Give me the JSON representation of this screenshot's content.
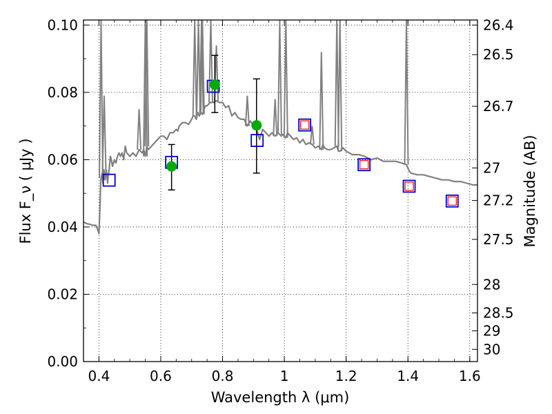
{
  "chart_data": {
    "type": "scatter",
    "xlabel": "Wavelength  λ (μm)",
    "ylabel": "Flux  F_ν  ( μJy )",
    "y2label": "Magnitude (AB)",
    "xlim": [
      0.35,
      1.625
    ],
    "ylim": [
      0.0,
      0.1015
    ],
    "grid": true,
    "x_ticks": [
      0.4,
      0.6,
      0.8,
      1.0,
      1.2,
      1.4,
      1.6
    ],
    "x_tick_labels": [
      "0.4",
      "0.6",
      "0.8",
      "1",
      "1.2",
      "1.4",
      "1.6"
    ],
    "y_ticks": [
      0.0,
      0.02,
      0.04,
      0.06,
      0.08,
      0.1
    ],
    "y_tick_labels": [
      "0.00",
      "0.02",
      "0.04",
      "0.06",
      "0.08",
      "0.10"
    ],
    "mag_ticks": [
      26.4,
      26.5,
      26.7,
      27,
      27.2,
      27.5,
      28,
      28.5,
      29,
      30
    ],
    "mag_tick_labels": [
      "26.4",
      "26.5",
      "26.7",
      "27",
      "27.2",
      "27.5",
      "28",
      "28.5",
      "29",
      "30"
    ],
    "series": [
      {
        "type": "line",
        "color": "#808080",
        "x": [
          0.35,
          0.36,
          0.37,
          0.38,
          0.39,
          0.395,
          0.4,
          0.403,
          0.406,
          0.41,
          0.413,
          0.416,
          0.42,
          0.424,
          0.428,
          0.43,
          0.433,
          0.437,
          0.44,
          0.444,
          0.45,
          0.455,
          0.46,
          0.465,
          0.47,
          0.475,
          0.48,
          0.485,
          0.49,
          0.5,
          0.51,
          0.52,
          0.53,
          0.54,
          0.545,
          0.55,
          0.555,
          0.56,
          0.57,
          0.58,
          0.59,
          0.6,
          0.61,
          0.62,
          0.63,
          0.64,
          0.65,
          0.655,
          0.66,
          0.67,
          0.68,
          0.69,
          0.7,
          0.705,
          0.71,
          0.715,
          0.72,
          0.725,
          0.73,
          0.735,
          0.74,
          0.745,
          0.75,
          0.76,
          0.77,
          0.78,
          0.79,
          0.8,
          0.81,
          0.82,
          0.83,
          0.84,
          0.85,
          0.86,
          0.87,
          0.88,
          0.89,
          0.9,
          0.91,
          0.92,
          0.93,
          0.94,
          0.95,
          0.96,
          0.97,
          0.98,
          0.99,
          0.995,
          1.0,
          1.005,
          1.01,
          1.02,
          1.03,
          1.04,
          1.05,
          1.06,
          1.07,
          1.08,
          1.09,
          1.1,
          1.11,
          1.12,
          1.125,
          1.13,
          1.14,
          1.15,
          1.16,
          1.17,
          1.175,
          1.18,
          1.185,
          1.19,
          1.2,
          1.22,
          1.24,
          1.26,
          1.28,
          1.3,
          1.32,
          1.34,
          1.36,
          1.38,
          1.395,
          1.4,
          1.405,
          1.41,
          1.43,
          1.45,
          1.47,
          1.49,
          1.51,
          1.53,
          1.55,
          1.57,
          1.59,
          1.61,
          1.625
        ],
        "y": [
          0.0415,
          0.041,
          0.0408,
          0.0405,
          0.0405,
          0.0395,
          0.038,
          0.045,
          0.054,
          0.056,
          0.053,
          0.057,
          0.054,
          0.057,
          0.053,
          0.055,
          0.057,
          0.061,
          0.06,
          0.058,
          0.06,
          0.059,
          0.061,
          0.062,
          0.061,
          0.062,
          0.06,
          0.064,
          0.062,
          0.061,
          0.062,
          0.061,
          0.063,
          0.062,
          0.063,
          0.061,
          0.064,
          0.063,
          0.064,
          0.065,
          0.066,
          0.067,
          0.067,
          0.066,
          0.068,
          0.068,
          0.069,
          0.0685,
          0.07,
          0.071,
          0.071,
          0.0705,
          0.072,
          0.073,
          0.073,
          0.072,
          0.074,
          0.073,
          0.074,
          0.0735,
          0.075,
          0.076,
          0.076,
          0.077,
          0.077,
          0.0775,
          0.077,
          0.077,
          0.0755,
          0.076,
          0.073,
          0.074,
          0.0725,
          0.072,
          0.072,
          0.07,
          0.0715,
          0.07,
          0.069,
          0.066,
          0.069,
          0.068,
          0.067,
          0.068,
          0.067,
          0.068,
          0.067,
          0.0675,
          0.067,
          0.0665,
          0.068,
          0.067,
          0.066,
          0.0665,
          0.065,
          0.066,
          0.0645,
          0.065,
          0.0645,
          0.0635,
          0.064,
          0.063,
          0.0645,
          0.0635,
          0.063,
          0.063,
          0.0635,
          0.064,
          0.0625,
          0.0625,
          0.063,
          0.0635,
          0.0625,
          0.0615,
          0.0615,
          0.061,
          0.06,
          0.0605,
          0.0595,
          0.0595,
          0.0595,
          0.059,
          0.0585,
          0.0575,
          0.0565,
          0.056,
          0.0555,
          0.0555,
          0.055,
          0.0545,
          0.054,
          0.054,
          0.0535,
          0.0535,
          0.053,
          0.0525,
          0.0525
        ]
      },
      {
        "type": "emission-lines",
        "color": "#808080",
        "x": [
          0.407,
          0.417,
          0.53,
          0.55,
          0.555,
          0.71,
          0.722,
          0.732,
          0.735,
          0.762,
          0.78,
          0.88,
          0.97,
          0.985,
          1.005,
          1.09,
          1.12,
          1.17,
          1.18,
          1.395
        ],
        "y": [
          0.1015,
          0.079,
          0.075,
          0.1015,
          0.1015,
          0.1015,
          0.1015,
          0.1015,
          0.1015,
          0.1015,
          0.094,
          0.079,
          0.078,
          0.1015,
          0.1015,
          0.07,
          0.092,
          0.1015,
          0.1015,
          0.1015
        ]
      },
      {
        "type": "errorbar",
        "color": "#00aa00",
        "x": [
          0.635,
          0.775,
          0.91
        ],
        "y": [
          0.058,
          0.0823,
          0.0702
        ],
        "yerr_low": [
          0.051,
          0.074,
          0.056
        ],
        "yerr_high": [
          0.0645,
          0.091,
          0.084
        ]
      },
      {
        "type": "scatter-square",
        "color": "#0000cc",
        "x": [
          0.433,
          0.635,
          0.77,
          0.912,
          1.066,
          1.258,
          1.404,
          1.543
        ],
        "y": [
          0.0539,
          0.0592,
          0.0818,
          0.0657,
          0.0703,
          0.0585,
          0.0521,
          0.0477
        ]
      },
      {
        "type": "scatter-square",
        "color": "#ff0000",
        "x": [
          1.066,
          1.258,
          1.404,
          1.543
        ],
        "y": [
          0.0703,
          0.0585,
          0.0521,
          0.0477
        ]
      }
    ]
  }
}
